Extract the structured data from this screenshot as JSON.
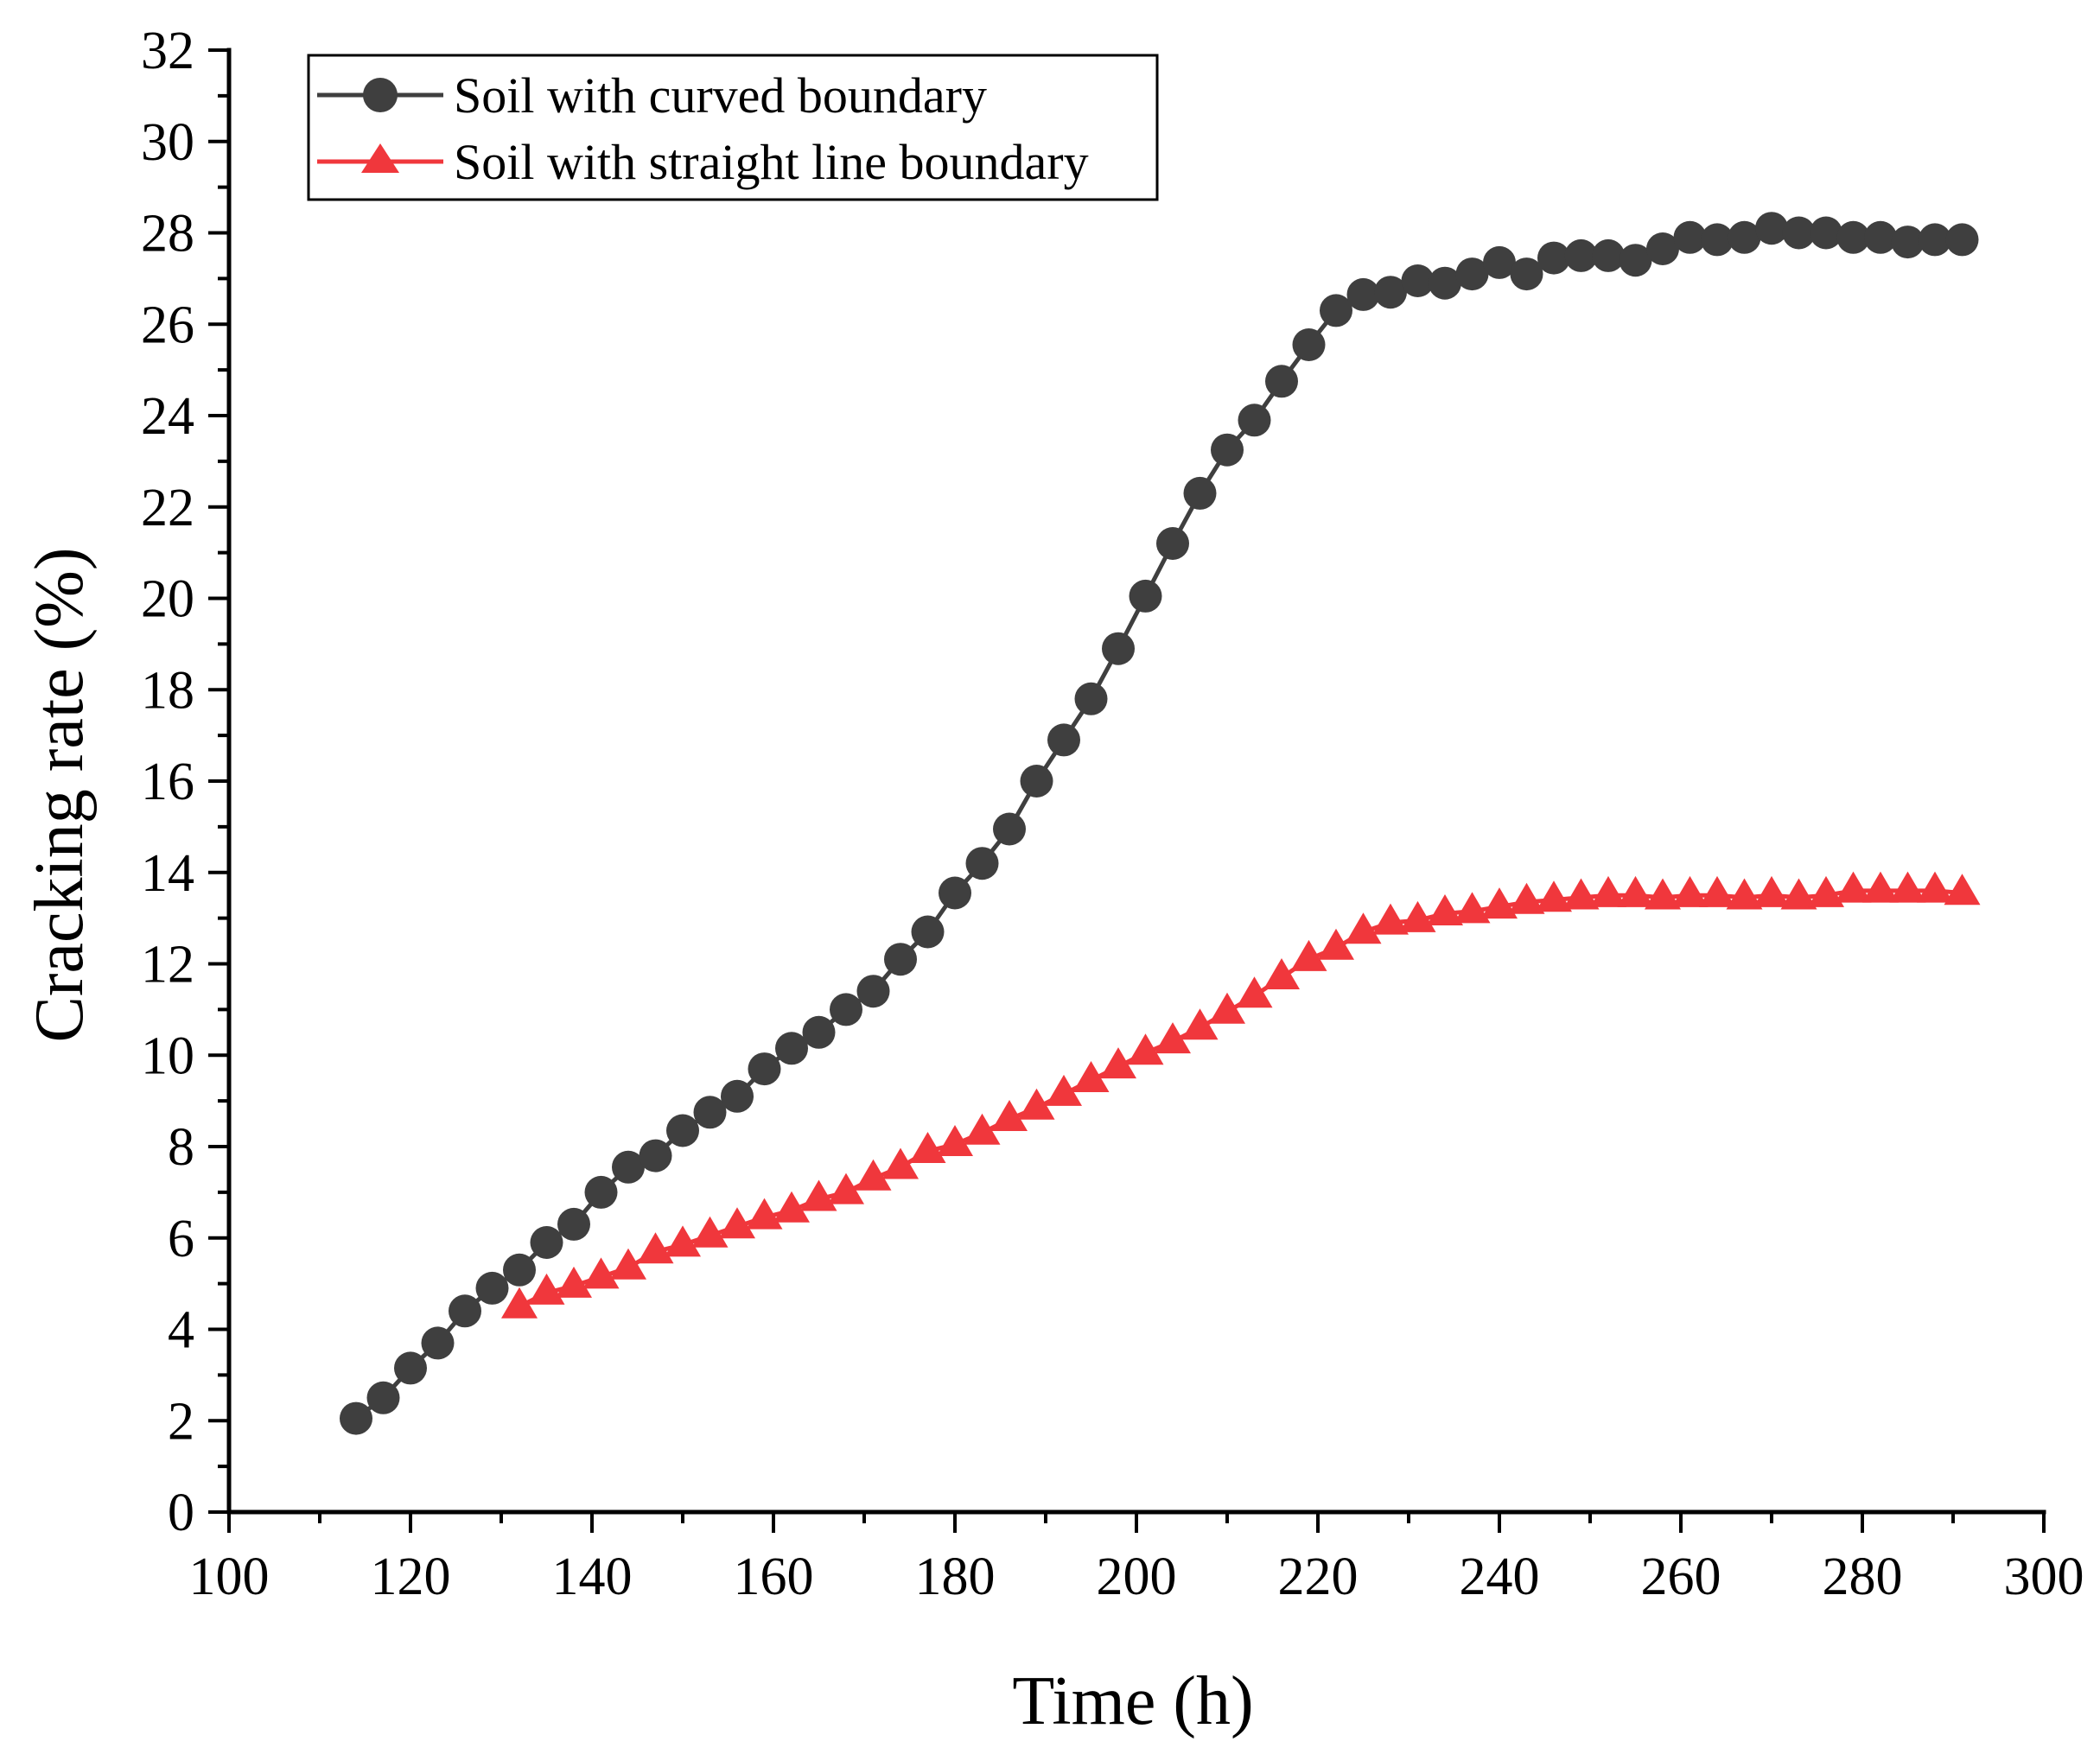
{
  "chart_data": {
    "type": "line",
    "title": "",
    "xlabel": "Time (h)",
    "ylabel": "Cracking rate (%)",
    "xlim": [
      100,
      300
    ],
    "ylim": [
      0,
      32
    ],
    "x_major_ticks": [
      100,
      120,
      140,
      160,
      180,
      200,
      220,
      240,
      260,
      280,
      300
    ],
    "y_major_ticks": [
      0,
      2,
      4,
      6,
      8,
      10,
      12,
      14,
      16,
      18,
      20,
      22,
      24,
      26,
      28,
      30,
      32
    ],
    "x_tick_labels": [
      "100",
      "120",
      "140",
      "160",
      "180",
      "200",
      "220",
      "240",
      "260",
      "280",
      "300"
    ],
    "y_tick_labels": [
      "0",
      "2",
      "4",
      "6",
      "8",
      "10",
      "12",
      "14",
      "16",
      "18",
      "20",
      "22",
      "24",
      "26",
      "28",
      "30",
      "32"
    ],
    "grid": false,
    "legend_position": "top-left",
    "series": [
      {
        "name": "Soil with curved boundary",
        "marker": "circle",
        "color": "#3f3f3f",
        "x": [
          114,
          117,
          120,
          123,
          126,
          129,
          132,
          135,
          138,
          141,
          144,
          147,
          150,
          153,
          156,
          159,
          162,
          165,
          168,
          171,
          174,
          177,
          180,
          183,
          186,
          189,
          192,
          195,
          198,
          201,
          204,
          207,
          210,
          213,
          216,
          219,
          222,
          225,
          228,
          231,
          234,
          237,
          240,
          243,
          246,
          249,
          252,
          255,
          258,
          261,
          264,
          267,
          270,
          273,
          276,
          279,
          282,
          285,
          288,
          291
        ],
        "values": [
          2.05,
          2.5,
          3.15,
          3.7,
          4.4,
          4.9,
          5.3,
          5.9,
          6.3,
          7.0,
          7.55,
          7.8,
          8.35,
          8.75,
          9.1,
          9.7,
          10.15,
          10.5,
          11.0,
          11.4,
          12.1,
          12.7,
          13.55,
          14.2,
          14.95,
          16.0,
          16.9,
          17.8,
          18.9,
          20.05,
          21.2,
          22.3,
          23.25,
          23.9,
          24.75,
          25.55,
          26.3,
          26.65,
          26.7,
          26.95,
          26.9,
          27.1,
          27.35,
          27.1,
          27.45,
          27.5,
          27.5,
          27.4,
          27.65,
          27.9,
          27.85,
          27.9,
          28.1,
          28.0,
          28.0,
          27.9,
          27.9,
          27.8,
          27.85,
          27.85
        ]
      },
      {
        "name": "Soil with straight line boundary",
        "marker": "triangle",
        "color": "#f0373c",
        "x": [
          132,
          135,
          138,
          141,
          144,
          147,
          150,
          153,
          156,
          159,
          162,
          165,
          168,
          171,
          174,
          177,
          180,
          183,
          186,
          189,
          192,
          195,
          198,
          201,
          204,
          207,
          210,
          213,
          216,
          219,
          222,
          225,
          228,
          231,
          234,
          237,
          240,
          243,
          246,
          249,
          252,
          255,
          258,
          261,
          264,
          267,
          270,
          273,
          276,
          279,
          282,
          285,
          288,
          291
        ],
        "values": [
          4.5,
          4.8,
          4.95,
          5.15,
          5.35,
          5.7,
          5.85,
          6.05,
          6.25,
          6.45,
          6.6,
          6.85,
          7.0,
          7.3,
          7.55,
          7.9,
          8.05,
          8.3,
          8.6,
          8.85,
          9.15,
          9.45,
          9.75,
          10.05,
          10.3,
          10.6,
          10.95,
          11.3,
          11.7,
          12.1,
          12.35,
          12.7,
          12.9,
          12.95,
          13.1,
          13.15,
          13.25,
          13.35,
          13.4,
          13.45,
          13.5,
          13.5,
          13.45,
          13.5,
          13.5,
          13.45,
          13.5,
          13.45,
          13.5,
          13.6,
          13.6,
          13.6,
          13.6,
          13.55
        ]
      }
    ]
  }
}
